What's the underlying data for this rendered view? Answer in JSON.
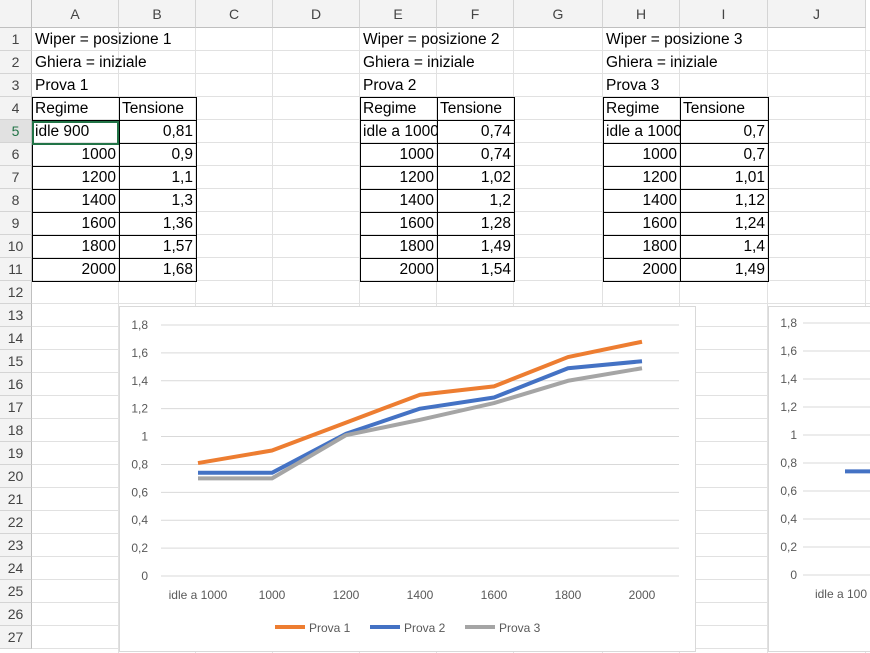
{
  "columns": [
    "A",
    "B",
    "C",
    "D",
    "E",
    "F",
    "G",
    "H",
    "I",
    "J"
  ],
  "rows": [
    "1",
    "2",
    "3",
    "4",
    "5",
    "6",
    "7",
    "8",
    "9",
    "10",
    "11",
    "12",
    "13",
    "14",
    "15",
    "16",
    "17",
    "18",
    "19",
    "20",
    "21",
    "22",
    "23",
    "24",
    "25",
    "26",
    "27"
  ],
  "selected_row": "5",
  "cells": {
    "A1": "Wiper = posizione 1",
    "A2": "Ghiera = iniziale",
    "A3": "Prova 1",
    "A4": "Regime",
    "B4": "Tensione",
    "A5": "idle 900",
    "B5": "0,81",
    "A6": "1000",
    "B6": "0,9",
    "A7": "1200",
    "B7": "1,1",
    "A8": "1400",
    "B8": "1,3",
    "A9": "1600",
    "B9": "1,36",
    "A10": "1800",
    "B10": "1,57",
    "A11": "2000",
    "B11": "1,68",
    "E1": "Wiper = posizione 2",
    "E2": "Ghiera = iniziale",
    "E3": "Prova 2",
    "E4": "Regime",
    "F4": "Tensione",
    "E5": "idle a 1000",
    "F5": "0,74",
    "E6": "1000",
    "F6": "0,74",
    "E7": "1200",
    "F7": "1,02",
    "E8": "1400",
    "F8": "1,2",
    "E9": "1600",
    "F9": "1,28",
    "E10": "1800",
    "F10": "1,49",
    "E11": "2000",
    "F11": "1,54",
    "H1": "Wiper = posizione 3",
    "H2": "Ghiera = iniziale",
    "H3": "Prova 3",
    "H4": "Regime",
    "I4": "Tensione",
    "H5": "idle a 1000",
    "I5": "0,7",
    "H6": "1000",
    "I6": "0,7",
    "H7": "1200",
    "I7": "1,01",
    "H8": "1400",
    "I8": "1,12",
    "H9": "1600",
    "I9": "1,24",
    "H10": "1800",
    "I10": "1,4",
    "H11": "2000",
    "I11": "1,49"
  },
  "chart_data": [
    {
      "type": "line",
      "categories": [
        "idle a 1000",
        "1000",
        "1200",
        "1400",
        "1600",
        "1800",
        "2000"
      ],
      "ylim": [
        0,
        1.8
      ],
      "yticks": [
        "0",
        "0,2",
        "0,4",
        "0,6",
        "0,8",
        "1",
        "1,2",
        "1,4",
        "1,6",
        "1,8"
      ],
      "grid": true,
      "legend_position": "bottom",
      "series": [
        {
          "name": "Prova 1",
          "color": "#ED7D31",
          "values": [
            0.81,
            0.9,
            1.1,
            1.3,
            1.36,
            1.57,
            1.68
          ]
        },
        {
          "name": "Prova 2",
          "color": "#4472C4",
          "values": [
            0.74,
            0.74,
            1.02,
            1.2,
            1.28,
            1.49,
            1.54
          ]
        },
        {
          "name": "Prova 3",
          "color": "#A5A5A5",
          "values": [
            0.7,
            0.7,
            1.01,
            1.12,
            1.24,
            1.4,
            1.49
          ]
        }
      ]
    },
    {
      "type": "line",
      "partially_visible": true,
      "categories": [
        "idle a 100"
      ],
      "ylim": [
        0,
        1.8
      ],
      "yticks": [
        "0",
        "0,2",
        "0,4",
        "0,6",
        "0,8",
        "1",
        "1,2",
        "1,4",
        "1,6",
        "1,8"
      ],
      "series": [
        {
          "color": "#4472C4",
          "values": [
            0.74
          ]
        }
      ]
    }
  ]
}
